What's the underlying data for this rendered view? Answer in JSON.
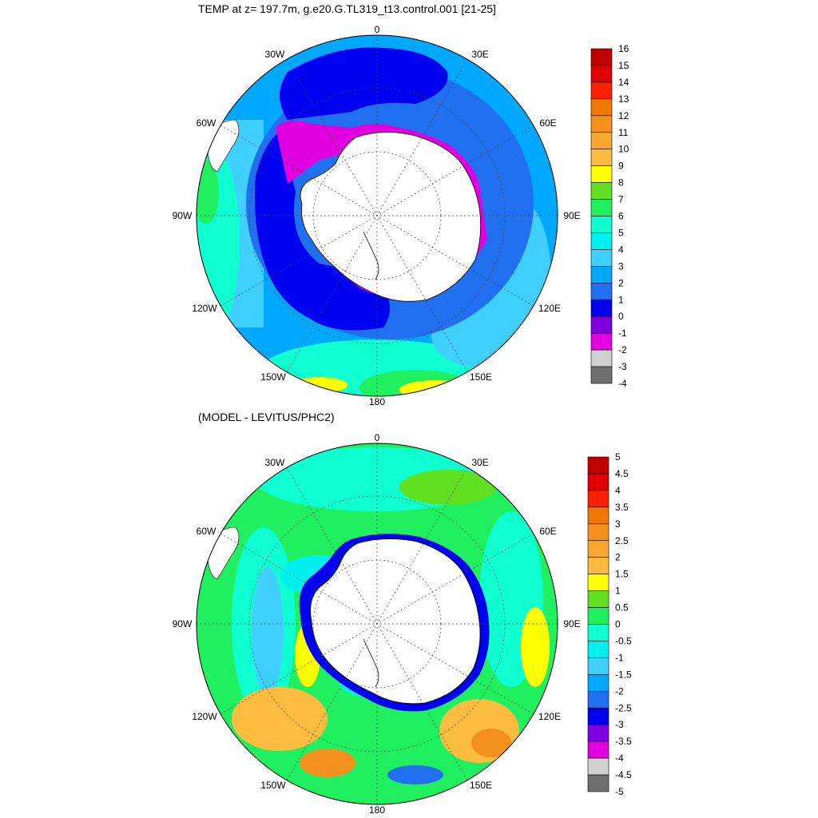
{
  "panels": [
    {
      "title": "TEMP at z= 197.7m, g.e20.G.TL319_t13.control.001 [21-25]",
      "lon_labels": [
        "0",
        "30E",
        "60E",
        "90E",
        "120E",
        "150E",
        "180",
        "150W",
        "120W",
        "90W",
        "60W",
        "30W"
      ],
      "colorbar": {
        "labels": [
          "16",
          "15",
          "14",
          "13",
          "12",
          "11",
          "10",
          "9",
          "8",
          "7",
          "6",
          "5",
          "4",
          "3",
          "2",
          "1",
          "0",
          "-1",
          "-2",
          "-3",
          "-4"
        ],
        "colors": [
          "#c00000",
          "#e00000",
          "#ff2000",
          "#f07800",
          "#f4901e",
          "#f8a830",
          "#fcbc40",
          "#ffff00",
          "#60e020",
          "#20f060",
          "#10ffd0",
          "#00f0f0",
          "#40d0ff",
          "#00a8ff",
          "#2070f0",
          "#0000f0",
          "#8000e0",
          "#e000e0",
          "#d0d0d0",
          "#707070"
        ]
      }
    },
    {
      "title": "(MODEL - LEVITUS/PHC2)",
      "lon_labels": [
        "0",
        "30E",
        "60E",
        "90E",
        "120E",
        "150E",
        "180",
        "150W",
        "120W",
        "90W",
        "60W",
        "30W"
      ],
      "colorbar": {
        "labels": [
          "5",
          "4.5",
          "4",
          "3.5",
          "3",
          "2.5",
          "2",
          "1.5",
          "1",
          "0.5",
          "0",
          "-0.5",
          "-1",
          "-1.5",
          "-2",
          "-2.5",
          "-3",
          "-3.5",
          "-4",
          "-4.5",
          "-5"
        ],
        "colors": [
          "#c00000",
          "#e00000",
          "#ff2000",
          "#f07800",
          "#f4901e",
          "#f8a830",
          "#fcbc40",
          "#ffff00",
          "#60e020",
          "#20f060",
          "#10ffd0",
          "#00f0f0",
          "#40d0ff",
          "#00a8ff",
          "#2070f0",
          "#0000f0",
          "#8000e0",
          "#e000e0",
          "#d0d0d0",
          "#707070"
        ]
      }
    }
  ],
  "chart_data": [
    {
      "type": "heatmap",
      "projection": "south polar stereographic",
      "title": "TEMP at z= 197.7m, g.e20.G.TL319_t13.control.001 [21-25]",
      "variable": "TEMP",
      "depth": "197.7m",
      "case": "g.e20.G.TL319_t13.control.001",
      "years": "[21-25]",
      "longitude_ticks": [
        "0",
        "30E",
        "60E",
        "90E",
        "120E",
        "150E",
        "180",
        "150W",
        "120W",
        "90W",
        "60W",
        "30W"
      ],
      "colorbar_levels": [
        -4,
        -3,
        -2,
        -1,
        0,
        1,
        2,
        3,
        4,
        5,
        6,
        7,
        8,
        9,
        10,
        11,
        12,
        13,
        14,
        15,
        16
      ],
      "land_mask": "Antarctica (white)"
    },
    {
      "type": "heatmap",
      "projection": "south polar stereographic",
      "title": "(MODEL - LEVITUS/PHC2)",
      "longitude_ticks": [
        "0",
        "30E",
        "60E",
        "90E",
        "120E",
        "150E",
        "180",
        "150W",
        "120W",
        "90W",
        "60W",
        "30W"
      ],
      "colorbar_levels": [
        -5,
        -4.5,
        -4,
        -3.5,
        -3,
        -2.5,
        -2,
        -1.5,
        -1,
        -0.5,
        0,
        0.5,
        1,
        1.5,
        2,
        2.5,
        3,
        3.5,
        4,
        4.5,
        5
      ],
      "land_mask": "Antarctica (white)"
    }
  ]
}
